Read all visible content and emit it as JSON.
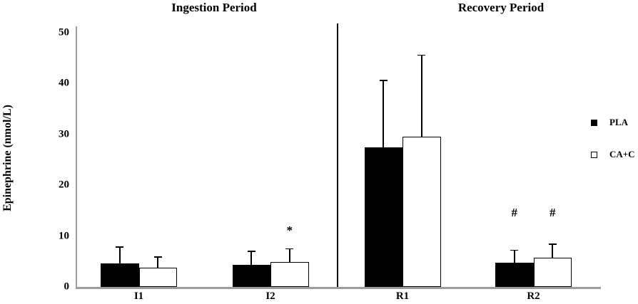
{
  "titles": {
    "left_panel": "Ingestion Period",
    "right_panel": "Recovery Period"
  },
  "chart_data": {
    "type": "bar",
    "ylabel": "Epinephrine (nmol/L)",
    "ylim": [
      0,
      50
    ],
    "yticks": [
      0,
      10,
      20,
      30,
      40,
      50
    ],
    "categories": [
      "I1",
      "I2",
      "R1",
      "R2"
    ],
    "panels": [
      {
        "title": "Ingestion Period",
        "categories": [
          "I1",
          "I2"
        ]
      },
      {
        "title": "Recovery Period",
        "categories": [
          "R1",
          "R2"
        ]
      }
    ],
    "series": [
      {
        "name": "PLA",
        "fill": "#000000",
        "values": [
          4.6,
          4.4,
          27.5,
          4.7
        ],
        "errors_up": [
          3.1,
          2.5,
          13.0,
          2.4
        ]
      },
      {
        "name": "CA+C",
        "fill": "#ffffff",
        "values": [
          3.8,
          4.9,
          29.5,
          5.8
        ],
        "errors_up": [
          2.0,
          2.5,
          16.0,
          2.5
        ]
      }
    ],
    "annotations": [
      {
        "symbol": "*",
        "category": "I2",
        "series": "CA+C",
        "y_value": 11.0
      },
      {
        "symbol": "#",
        "category": "R2",
        "series": "PLA",
        "y_value": 14.5
      },
      {
        "symbol": "#",
        "category": "R2",
        "series": "CA+C",
        "y_value": 14.5
      }
    ],
    "legend": {
      "position": "right",
      "items": [
        {
          "label": "PLA",
          "fill": "#000000"
        },
        {
          "label": "CA+C",
          "fill": "#ffffff"
        }
      ]
    },
    "grid": false
  },
  "colors": {
    "bar_black": "#000000",
    "bar_white": "#ffffff",
    "bar_border": "#000000",
    "axis_gray": "#9c9c9c",
    "divider_black": "#000000"
  }
}
